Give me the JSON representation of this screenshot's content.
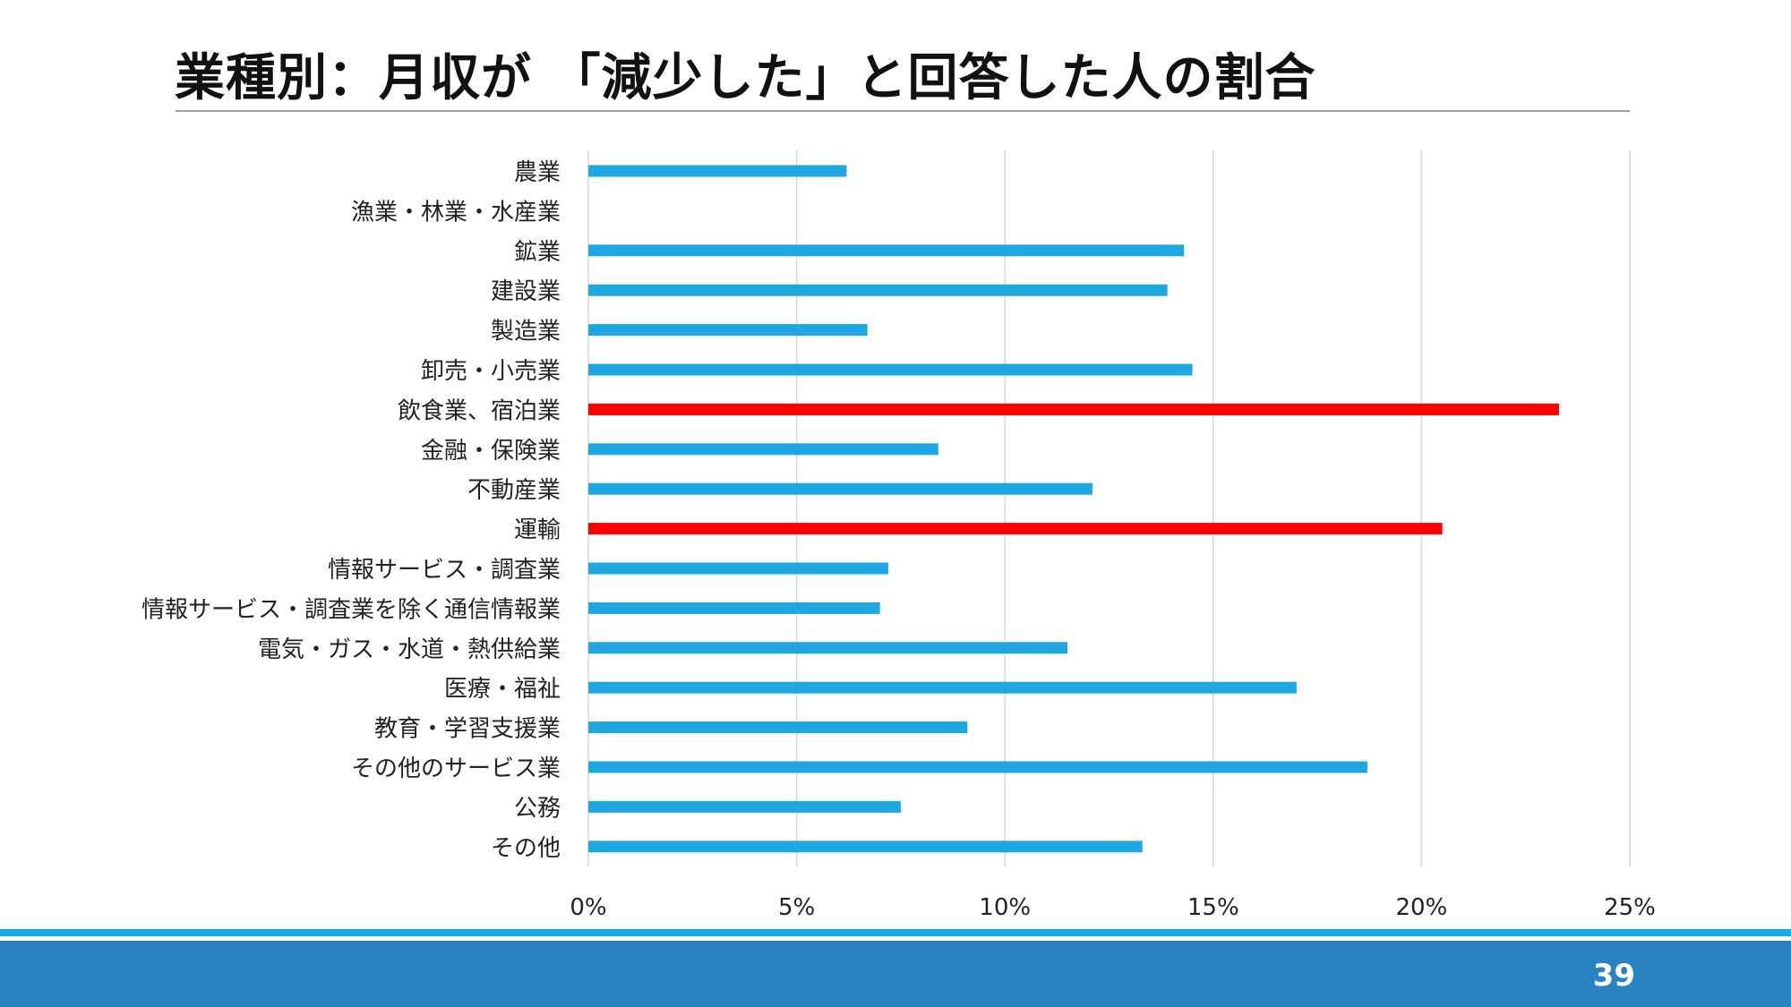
{
  "slide": {
    "title": "業種別：月収が 「減少した」と回答した人の割合",
    "page_number": "39"
  },
  "colors": {
    "default_bar": "#1ea7e1",
    "highlight_bar": "#ff0000",
    "grid": "#d9d9d9",
    "footer": "#2a82c5",
    "footer_line": "#1ea7e1"
  },
  "chart_data": {
    "type": "bar",
    "orientation": "horizontal",
    "title": "",
    "xlabel": "",
    "ylabel": "",
    "xlim": [
      0,
      0.25
    ],
    "grid": true,
    "legend": "none",
    "x_ticks": [
      "0%",
      "5%",
      "10%",
      "15%",
      "20%",
      "25%"
    ],
    "x_tick_values": [
      0,
      0.05,
      0.1,
      0.15,
      0.2,
      0.25
    ],
    "categories": [
      "農業",
      "漁業・林業・水産業",
      "鉱業",
      "建設業",
      "製造業",
      "卸売・小売業",
      "飲食業、宿泊業",
      "金融・保険業",
      "不動産業",
      "運輸",
      "情報サービス・調査業",
      "情報サービス・調査業を除く通信情報業",
      "電気・ガス・水道・熱供給業",
      "医療・福祉",
      "教育・学習支援業",
      "その他のサービス業",
      "公務",
      "その他"
    ],
    "values": [
      0.062,
      0.0,
      0.143,
      0.139,
      0.067,
      0.145,
      0.233,
      0.084,
      0.121,
      0.205,
      0.072,
      0.07,
      0.115,
      0.17,
      0.091,
      0.187,
      0.075,
      0.133
    ],
    "highlighted": [
      "飲食業、宿泊業",
      "運輸"
    ]
  }
}
